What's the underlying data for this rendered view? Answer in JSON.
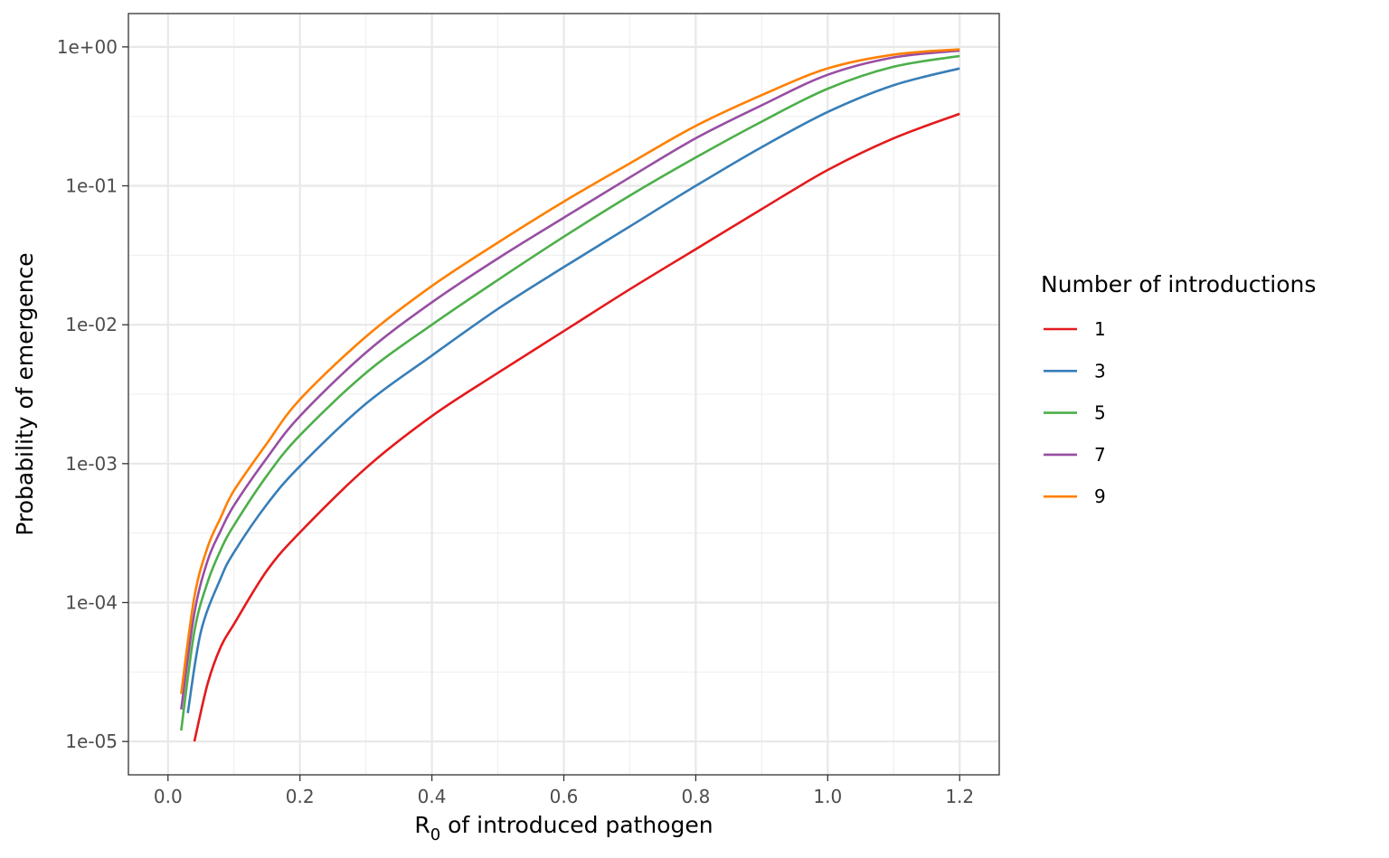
{
  "chart_data": {
    "type": "line",
    "xlabel_main": "R",
    "xlabel_sub": "0",
    "xlabel_rest": " of introduced pathogen",
    "ylabel": "Probability of emergence",
    "y_scale": "log10",
    "xlim": [
      -0.06,
      1.26
    ],
    "ylim_log10": [
      -5.24,
      0.24
    ],
    "x_ticks": [
      {
        "value": 0.0,
        "label": "0.0"
      },
      {
        "value": 0.2,
        "label": "0.2"
      },
      {
        "value": 0.4,
        "label": "0.4"
      },
      {
        "value": 0.6,
        "label": "0.6"
      },
      {
        "value": 0.8,
        "label": "0.8"
      },
      {
        "value": 1.0,
        "label": "1.0"
      },
      {
        "value": 1.2,
        "label": "1.2"
      }
    ],
    "y_ticks": [
      {
        "value": 1,
        "label": "1e+00"
      },
      {
        "value": 0.1,
        "label": "1e-01"
      },
      {
        "value": 0.01,
        "label": "1e-02"
      },
      {
        "value": 0.001,
        "label": "1e-03"
      },
      {
        "value": 0.0001,
        "label": "1e-04"
      },
      {
        "value": 1e-05,
        "label": "1e-05"
      }
    ],
    "grid": true,
    "legend": {
      "title": "Number of introductions",
      "placement": "right"
    },
    "series": [
      {
        "name": "1",
        "color": "#E41A1C",
        "x": [
          0.04,
          0.06,
          0.08,
          0.1,
          0.15,
          0.2,
          0.3,
          0.4,
          0.5,
          0.6,
          0.7,
          0.8,
          0.9,
          1.0,
          1.1,
          1.2
        ],
        "y": [
          1e-05,
          2.6e-05,
          4.8e-05,
          7e-05,
          0.00017,
          0.00032,
          0.00093,
          0.0022,
          0.0045,
          0.009,
          0.018,
          0.035,
          0.068,
          0.13,
          0.22,
          0.33
        ]
      },
      {
        "name": "3",
        "color": "#377EB8",
        "x": [
          0.03,
          0.05,
          0.08,
          0.1,
          0.15,
          0.2,
          0.3,
          0.4,
          0.5,
          0.6,
          0.7,
          0.8,
          0.9,
          1.0,
          1.1,
          1.2
        ],
        "y": [
          1.6e-05,
          6.2e-05,
          0.00015,
          0.00023,
          0.00051,
          0.00096,
          0.0027,
          0.006,
          0.013,
          0.026,
          0.051,
          0.1,
          0.19,
          0.34,
          0.53,
          0.7
        ]
      },
      {
        "name": "5",
        "color": "#4DAF4A",
        "x": [
          0.02,
          0.04,
          0.06,
          0.08,
          0.1,
          0.15,
          0.2,
          0.3,
          0.4,
          0.5,
          0.6,
          0.7,
          0.8,
          0.9,
          1.0,
          1.1,
          1.2
        ],
        "y": [
          1.2e-05,
          6.2e-05,
          0.00014,
          0.00024,
          0.00036,
          0.00082,
          0.0016,
          0.0045,
          0.01,
          0.021,
          0.043,
          0.085,
          0.16,
          0.29,
          0.5,
          0.72,
          0.86
        ]
      },
      {
        "name": "7",
        "color": "#984EA3",
        "x": [
          0.02,
          0.04,
          0.06,
          0.08,
          0.1,
          0.15,
          0.2,
          0.3,
          0.4,
          0.5,
          0.6,
          0.7,
          0.8,
          0.9,
          1.0,
          1.1,
          1.2
        ],
        "y": [
          1.7e-05,
          8.4e-05,
          0.0002,
          0.00033,
          0.0005,
          0.0011,
          0.0022,
          0.0063,
          0.0145,
          0.03,
          0.059,
          0.115,
          0.22,
          0.38,
          0.63,
          0.84,
          0.94
        ]
      },
      {
        "name": "9",
        "color": "#FF7F00",
        "x": [
          0.02,
          0.04,
          0.06,
          0.08,
          0.1,
          0.15,
          0.2,
          0.3,
          0.4,
          0.5,
          0.6,
          0.7,
          0.8,
          0.9,
          1.0,
          1.1,
          1.2
        ],
        "y": [
          2.2e-05,
          0.00011,
          0.00025,
          0.00041,
          0.00064,
          0.0014,
          0.0029,
          0.0082,
          0.019,
          0.039,
          0.077,
          0.145,
          0.27,
          0.45,
          0.7,
          0.88,
          0.96
        ]
      }
    ]
  }
}
